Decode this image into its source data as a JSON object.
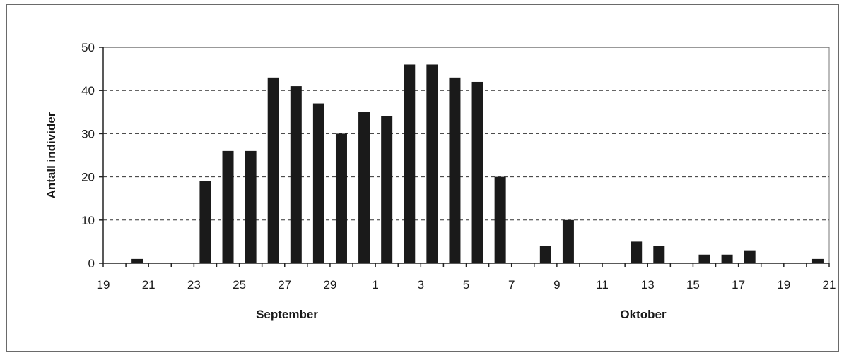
{
  "chart_data": {
    "type": "bar",
    "ylabel": "Antall individer",
    "ylim": [
      0,
      50
    ],
    "yticks": [
      0,
      10,
      20,
      30,
      40,
      50
    ],
    "grid": "horizontal dashed",
    "bar_color": "#1a1a1a",
    "x": [
      "19",
      "20",
      "21",
      "22",
      "23",
      "24",
      "25",
      "26",
      "27",
      "28",
      "29",
      "30",
      "1",
      "2",
      "3",
      "4",
      "5",
      "6",
      "7",
      "8",
      "9",
      "10",
      "11",
      "12",
      "13",
      "14",
      "15",
      "16",
      "17",
      "18",
      "19",
      "20",
      "21"
    ],
    "x_tick_labels": [
      "19",
      "21",
      "23",
      "25",
      "27",
      "29",
      "1",
      "3",
      "5",
      "7",
      "9",
      "11",
      "13",
      "15",
      "17",
      "19",
      "21"
    ],
    "values": [
      0,
      1,
      0,
      0,
      19,
      26,
      26,
      43,
      41,
      37,
      30,
      35,
      34,
      46,
      46,
      43,
      42,
      20,
      0,
      4,
      10,
      0,
      0,
      5,
      4,
      0,
      2,
      2,
      3,
      0,
      0,
      1,
      0
    ],
    "month_labels": [
      "September",
      "Oktober"
    ]
  }
}
